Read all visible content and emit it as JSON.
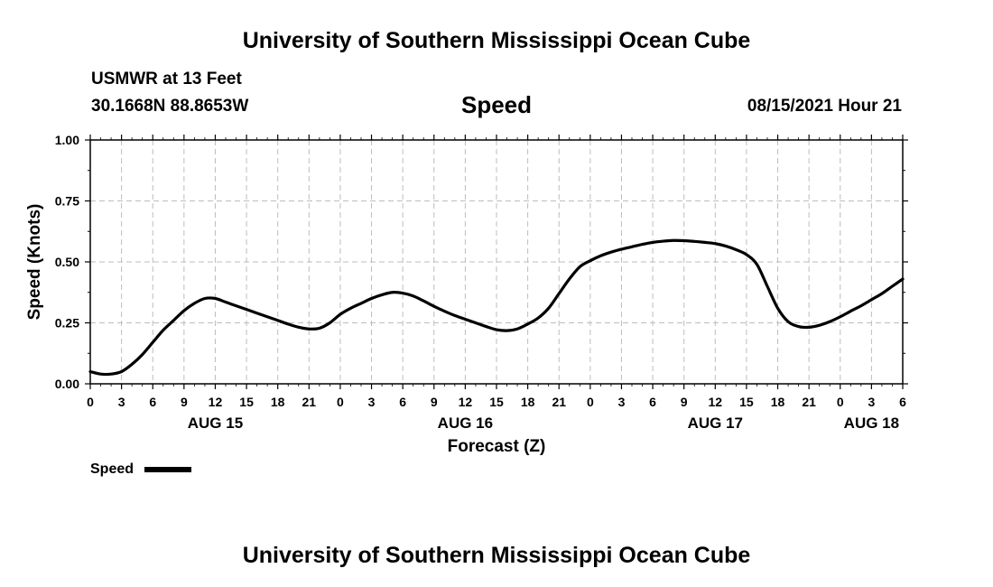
{
  "header": {
    "title": "University of Southern Mississippi Ocean Cube",
    "station": "USMWR at 13 Feet",
    "coordinates": "30.1668N  88.8653W",
    "datetime": "08/15/2021 Hour 21"
  },
  "footer": {
    "title": "University of Southern Mississippi Ocean Cube"
  },
  "legend": {
    "label": "Speed",
    "color": "#000000"
  },
  "chart_data": {
    "type": "line",
    "title": "Speed",
    "xlabel": "Forecast (Z)",
    "ylabel": "Speed (Knots)",
    "xlim": [
      0,
      78
    ],
    "ylim": [
      0,
      1
    ],
    "grid": true,
    "yticks": [
      0,
      0.25,
      0.5,
      0.75,
      1.0
    ],
    "ytick_labels": [
      "0.00",
      "0.25",
      "0.50",
      "0.75",
      "1.00"
    ],
    "xticks": [
      0,
      3,
      6,
      9,
      12,
      15,
      18,
      21,
      24,
      27,
      30,
      33,
      36,
      39,
      42,
      45,
      48,
      51,
      54,
      57,
      60,
      63,
      66,
      69,
      72,
      75,
      78
    ],
    "xtick_labels": [
      "0",
      "3",
      "6",
      "9",
      "12",
      "15",
      "18",
      "21",
      "0",
      "3",
      "6",
      "9",
      "12",
      "15",
      "18",
      "21",
      "0",
      "3",
      "6",
      "9",
      "12",
      "15",
      "18",
      "21",
      "0",
      "3",
      "6"
    ],
    "date_labels": [
      {
        "label": "AUG 15",
        "hour": 12
      },
      {
        "label": "AUG 16",
        "hour": 36
      },
      {
        "label": "AUG 17",
        "hour": 60
      },
      {
        "label": "AUG 18",
        "hour": 75
      }
    ],
    "series": [
      {
        "name": "Speed",
        "x": [
          0,
          1,
          2,
          3,
          4,
          5,
          6,
          7,
          8,
          9,
          10,
          11,
          12,
          13,
          14,
          15,
          16,
          17,
          18,
          19,
          20,
          21,
          22,
          23,
          24,
          25,
          26,
          27,
          28,
          29,
          30,
          31,
          32,
          33,
          34,
          35,
          36,
          37,
          38,
          39,
          40,
          41,
          42,
          43,
          44,
          45,
          46,
          47,
          48,
          49,
          50,
          51,
          52,
          53,
          54,
          55,
          56,
          57,
          58,
          59,
          60,
          61,
          62,
          63,
          64,
          65,
          66,
          67,
          68,
          69,
          70,
          71,
          72,
          73,
          74,
          75,
          76,
          77,
          78
        ],
        "values": [
          0.05,
          0.04,
          0.04,
          0.05,
          0.08,
          0.12,
          0.17,
          0.22,
          0.26,
          0.3,
          0.33,
          0.35,
          0.35,
          0.335,
          0.32,
          0.305,
          0.29,
          0.275,
          0.26,
          0.245,
          0.232,
          0.225,
          0.228,
          0.25,
          0.285,
          0.31,
          0.33,
          0.35,
          0.365,
          0.375,
          0.372,
          0.36,
          0.34,
          0.318,
          0.298,
          0.28,
          0.265,
          0.25,
          0.235,
          0.222,
          0.218,
          0.225,
          0.245,
          0.27,
          0.31,
          0.37,
          0.43,
          0.48,
          0.505,
          0.525,
          0.54,
          0.552,
          0.562,
          0.572,
          0.58,
          0.585,
          0.588,
          0.587,
          0.584,
          0.58,
          0.575,
          0.565,
          0.55,
          0.53,
          0.49,
          0.4,
          0.31,
          0.255,
          0.235,
          0.232,
          0.24,
          0.255,
          0.275,
          0.298,
          0.32,
          0.345,
          0.37,
          0.4,
          0.43
        ]
      }
    ]
  }
}
